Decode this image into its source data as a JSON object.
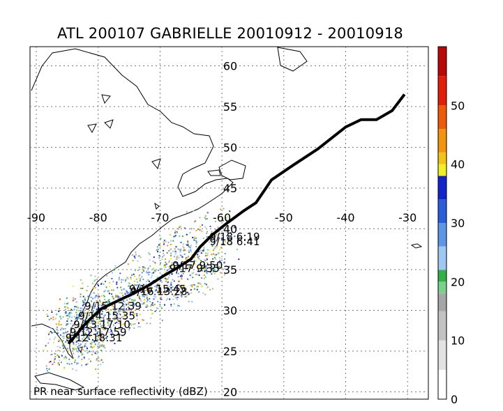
{
  "title": "ATL 200107 GABRIELLE 20010912 - 20010918",
  "caption": "PR near surface reflectivity (dBZ)",
  "map": {
    "lon_labels": [
      "-90",
      "-80",
      "-70",
      "-60",
      "-50",
      "-40",
      "-30"
    ],
    "lat_labels": [
      "60",
      "55",
      "50",
      "45",
      "40",
      "35",
      "30",
      "25",
      "20"
    ],
    "lon_range": [
      -90,
      -25
    ],
    "lat_range": [
      20,
      64
    ],
    "track": [
      [
        -84.8,
        25.9
      ],
      [
        -84.0,
        26.6
      ],
      [
        -83.2,
        27.3
      ],
      [
        -82.5,
        28.0
      ],
      [
        -81.2,
        29.0
      ],
      [
        -79.5,
        30.2
      ],
      [
        -77.0,
        31.1
      ],
      [
        -74.5,
        32.0
      ],
      [
        -72.0,
        33.0
      ],
      [
        -69.5,
        34.2
      ],
      [
        -67.0,
        35.3
      ],
      [
        -65.0,
        36.3
      ],
      [
        -63.5,
        37.8
      ],
      [
        -61.5,
        39.3
      ],
      [
        -59.0,
        40.8
      ],
      [
        -56.5,
        42.2
      ],
      [
        -54.5,
        43.2
      ],
      [
        -52.0,
        46.0
      ],
      [
        -48.5,
        47.8
      ],
      [
        -44.5,
        49.8
      ],
      [
        -40.0,
        52.5
      ],
      [
        -37.5,
        53.4
      ],
      [
        -35.0,
        53.4
      ],
      [
        -32.5,
        54.5
      ],
      [
        -30.5,
        56.5
      ]
    ],
    "overpasses": [
      {
        "label": "9/18 6:19",
        "lon": -62.0,
        "lat": 38.6
      },
      {
        "label": "9/18 6:41",
        "lon": -62.0,
        "lat": 38.0
      },
      {
        "label": "9/17 9:50",
        "lon": -68.0,
        "lat": 35.1
      },
      {
        "label": "9/17 9:35",
        "lon": -68.5,
        "lat": 34.7
      },
      {
        "label": "9/16 15:45",
        "lon": -75.0,
        "lat": 32.2
      },
      {
        "label": "9/16 13:28",
        "lon": -74.8,
        "lat": 31.9
      },
      {
        "label": "9/15 12:39",
        "lon": -82.2,
        "lat": 30.1
      },
      {
        "label": "9/14 15:35",
        "lon": -83.2,
        "lat": 28.9
      },
      {
        "label": "9/13 17:10",
        "lon": -84.0,
        "lat": 27.8
      },
      {
        "label": "9/12 17:59",
        "lon": -84.6,
        "lat": 26.9
      },
      {
        "label": "9/12 18:31",
        "lon": -85.3,
        "lat": 26.2
      }
    ]
  },
  "colorbar": {
    "tick_labels": [
      "0",
      "10",
      "20",
      "30",
      "40",
      "50"
    ],
    "min": 0,
    "max": 60,
    "stops": [
      {
        "from": 0,
        "to": 5,
        "color": "#ffffff"
      },
      {
        "from": 5,
        "to": 10,
        "color": "#e2e2e2"
      },
      {
        "from": 10,
        "to": 15,
        "color": "#c2c2c2"
      },
      {
        "from": 15,
        "to": 18,
        "color": "#a6a6a6"
      },
      {
        "from": 18,
        "to": 20,
        "color": "#7bd08b"
      },
      {
        "from": 20,
        "to": 22,
        "color": "#34b049"
      },
      {
        "from": 22,
        "to": 26,
        "color": "#9ec7f2"
      },
      {
        "from": 26,
        "to": 30,
        "color": "#5c96e4"
      },
      {
        "from": 30,
        "to": 34,
        "color": "#2a5edb"
      },
      {
        "from": 34,
        "to": 38,
        "color": "#1225c8"
      },
      {
        "from": 38,
        "to": 40,
        "color": "#f2ef24"
      },
      {
        "from": 40,
        "to": 42,
        "color": "#f2c318"
      },
      {
        "from": 42,
        "to": 46,
        "color": "#f29410"
      },
      {
        "from": 46,
        "to": 50,
        "color": "#ec5a0a"
      },
      {
        "from": 50,
        "to": 55,
        "color": "#e01e0a"
      },
      {
        "from": 55,
        "to": 60,
        "color": "#b80808"
      }
    ]
  }
}
